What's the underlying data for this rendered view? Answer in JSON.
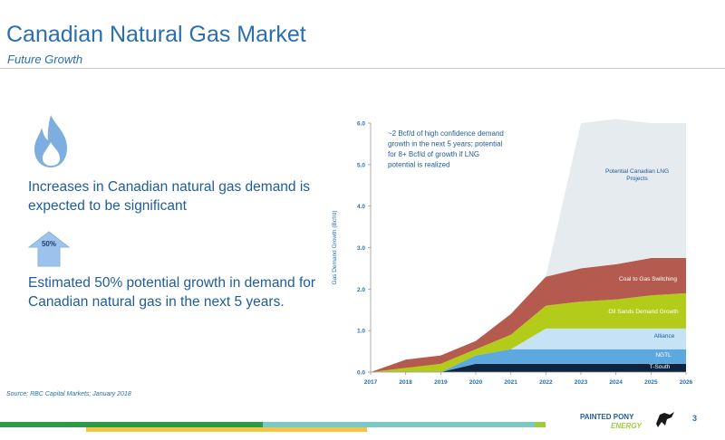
{
  "header": {
    "title": "Canadian Natural Gas Market",
    "subtitle": "Future Growth"
  },
  "left_panel": {
    "flame_icon": "flame-icon",
    "text1": "Increases in Canadian natural gas demand is expected to be significant",
    "arrow_icon": "up-arrow-icon",
    "arrow_label": "50%",
    "text2": "Estimated 50% potential growth in demand for Canadian natural gas in the next 5 years."
  },
  "source": "Source: RBC Capital Markets; January 2018",
  "footer": {
    "logo_text_1": "PAINTED PONY",
    "logo_text_2": "ENERGY",
    "page_number": "3"
  },
  "chart_data": {
    "type": "area",
    "title": "",
    "xlabel": "",
    "ylabel": "Gas Demand Growth (Bcf/d)",
    "x": [
      2017,
      2018,
      2019,
      2020,
      2021,
      2022,
      2023,
      2024,
      2025,
      2026
    ],
    "x_tick_labels": [
      "2017",
      "2018",
      "2019",
      "2020",
      "2021",
      "2022",
      "2023",
      "2024",
      "2025",
      "2026"
    ],
    "ylim": [
      0,
      6
    ],
    "y_tick_labels": [
      "0.0",
      "1.0",
      "2.0",
      "3.0",
      "4.0",
      "5.0",
      "6.0"
    ],
    "stacked": true,
    "grid": false,
    "annotation": "~2 Bcf/d of high confidence demand growth in the next 5 years; potential for 8+ Bcf/d of growth if LNG potential is realized",
    "series": [
      {
        "name": "T-South",
        "color": "#0d2340",
        "values": [
          0,
          0,
          0,
          0.2,
          0.2,
          0.2,
          0.2,
          0.2,
          0.2,
          0.2
        ]
      },
      {
        "name": "NGTL",
        "color": "#5ea8e0",
        "values": [
          0,
          0,
          0,
          0.2,
          0.35,
          0.35,
          0.35,
          0.35,
          0.35,
          0.35
        ]
      },
      {
        "name": "Alliance",
        "color": "#c6e2f5",
        "values": [
          0,
          0,
          0,
          0,
          0,
          0.5,
          0.5,
          0.5,
          0.5,
          0.5
        ]
      },
      {
        "name": "Oil Sands Demand Growth",
        "color": "#b3cc1a",
        "values": [
          0,
          0.1,
          0.2,
          0.15,
          0.35,
          0.55,
          0.65,
          0.7,
          0.8,
          0.85
        ]
      },
      {
        "name": "Coal to Gas Switching",
        "color": "#b55a4e",
        "values": [
          0,
          0.2,
          0.2,
          0.2,
          0.5,
          0.7,
          0.8,
          0.85,
          0.9,
          0.85
        ]
      },
      {
        "name": "Potential Canadian LNG Projects",
        "color": "#e6ebf0",
        "values": [
          0,
          0,
          0,
          0,
          0,
          0,
          3.5,
          3.5,
          3.25,
          3.25
        ]
      }
    ]
  }
}
